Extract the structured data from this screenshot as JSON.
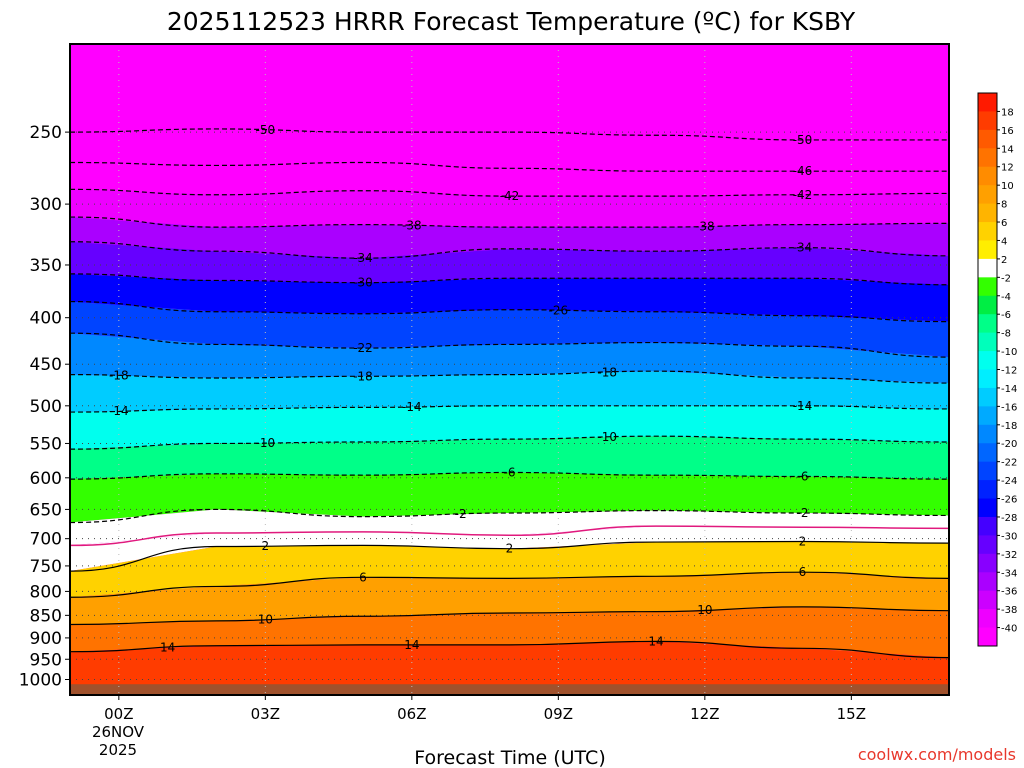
{
  "chart_data": {
    "type": "heatmap",
    "title": "2025112523 HRRR Forecast Temperature (ºC) for KSBY",
    "xlabel": "Forecast Time (UTC)",
    "ylabel": "",
    "credit": "coolwx.com/models",
    "y_axis": {
      "scale": "log-pressure",
      "inverted": true,
      "range_hpa": [
        1040,
        200
      ],
      "tick_values": [
        250,
        300,
        350,
        400,
        450,
        500,
        550,
        600,
        650,
        700,
        750,
        800,
        850,
        900,
        950,
        1000
      ],
      "tick_labels": [
        "250",
        "300",
        "350",
        "400",
        "450",
        "500",
        "550",
        "600",
        "650",
        "700",
        "750",
        "800",
        "850",
        "900",
        "950",
        "1000"
      ]
    },
    "x_axis": {
      "range_hours": [
        -1,
        17
      ],
      "tick_hours": [
        0,
        3,
        6,
        9,
        12,
        15
      ],
      "tick_labels": [
        "00Z",
        "03Z",
        "06Z",
        "09Z",
        "12Z",
        "15Z"
      ],
      "date_label": [
        "26NOV",
        "2025"
      ]
    },
    "colorbar": {
      "tick_labels": [
        "18",
        "16",
        "14",
        "12",
        "10",
        "8",
        "6",
        "4",
        "2",
        "-2",
        "-4",
        "-6",
        "-8",
        "-10",
        "-12",
        "-14",
        "-16",
        "-18",
        "-20",
        "-22",
        "-24",
        "-26",
        "-28",
        "-30",
        "-32",
        "-34",
        "-36",
        "-38",
        "-40"
      ],
      "colors": [
        "#ff1a00",
        "#ff3c00",
        "#ff5a00",
        "#ff7300",
        "#ff8c00",
        "#ffa000",
        "#ffb400",
        "#ffd200",
        "#ffee00",
        "#ffffff",
        "#33ff00",
        "#00ee44",
        "#00ff88",
        "#00ffbb",
        "#00ffee",
        "#00eeff",
        "#00ccff",
        "#00aaff",
        "#0088ff",
        "#0066ff",
        "#0044ff",
        "#0022ff",
        "#0000ff",
        "#4400ff",
        "#6600ff",
        "#8800ff",
        "#aa00ff",
        "#cc00ff",
        "#ee00ff",
        "#ff00ff"
      ]
    },
    "isotherms": [
      {
        "temp": -50,
        "label": "-50",
        "style": "dashed",
        "p": [
          250,
          248,
          250,
          250,
          252,
          255,
          255
        ],
        "label_hours": [
          3,
          14
        ]
      },
      {
        "temp": -46,
        "label": "-46",
        "style": "dashed",
        "p": [
          270,
          272,
          270,
          274,
          276,
          276,
          276
        ],
        "label_hours": [
          14
        ]
      },
      {
        "temp": -42,
        "label": "-42",
        "style": "dashed",
        "p": [
          289,
          293,
          290,
          294,
          294,
          293,
          292
        ],
        "label_hours": [
          8,
          14
        ]
      },
      {
        "temp": -38,
        "label": "-38",
        "style": "dashed",
        "p": [
          310,
          318,
          316,
          318,
          318,
          316,
          315
        ],
        "label_hours": [
          6,
          12
        ]
      },
      {
        "temp": -34,
        "label": "-34",
        "style": "dashed",
        "p": [
          330,
          338,
          344,
          336,
          338,
          335,
          342
        ],
        "label_hours": [
          5,
          14
        ]
      },
      {
        "temp": -30,
        "label": "-30",
        "style": "dashed",
        "p": [
          358,
          364,
          366,
          362,
          362,
          362,
          368
        ],
        "label_hours": [
          5
        ]
      },
      {
        "temp": -26,
        "label": "-26",
        "style": "dashed",
        "p": [
          384,
          394,
          396,
          392,
          394,
          398,
          404
        ],
        "label_hours": [
          9
        ]
      },
      {
        "temp": -22,
        "label": "-22",
        "style": "dashed",
        "p": [
          416,
          428,
          432,
          428,
          426,
          430,
          442
        ],
        "label_hours": [
          5
        ]
      },
      {
        "temp": -18,
        "label": "-18",
        "style": "dashed",
        "p": [
          462,
          466,
          464,
          462,
          458,
          466,
          472
        ],
        "label_hours": [
          0,
          5,
          10
        ]
      },
      {
        "temp": -14,
        "label": "-14",
        "style": "dashed",
        "p": [
          508,
          504,
          502,
          500,
          500,
          500,
          504
        ],
        "label_hours": [
          0,
          6,
          14
        ]
      },
      {
        "temp": -10,
        "label": "-10",
        "style": "dashed",
        "p": [
          558,
          550,
          548,
          544,
          540,
          544,
          548
        ],
        "label_hours": [
          3,
          10
        ]
      },
      {
        "temp": -6,
        "label": "-6",
        "style": "dashed",
        "p": [
          602,
          594,
          596,
          592,
          596,
          598,
          602
        ],
        "label_hours": [
          8,
          14
        ]
      },
      {
        "temp": -2,
        "label": "-2",
        "style": "dashed",
        "p": [
          672,
          650,
          662,
          656,
          652,
          656,
          660
        ],
        "label_hours": [
          7,
          14
        ]
      },
      {
        "temp": 0,
        "label": "",
        "style": "freezing",
        "p": [
          712,
          690,
          688,
          694,
          678,
          680,
          682
        ],
        "label_hours": []
      },
      {
        "temp": 2,
        "label": "2",
        "style": "solid",
        "p": [
          760,
          714,
          712,
          718,
          706,
          705,
          708
        ],
        "label_hours": [
          3,
          8,
          14
        ]
      },
      {
        "temp": 6,
        "label": "6",
        "style": "solid",
        "p": [
          812,
          790,
          772,
          774,
          770,
          762,
          774
        ],
        "label_hours": [
          5,
          14
        ]
      },
      {
        "temp": 10,
        "label": "10",
        "style": "solid",
        "p": [
          870,
          862,
          852,
          845,
          842,
          832,
          840
        ],
        "label_hours": [
          3,
          12
        ]
      },
      {
        "temp": 14,
        "label": "14",
        "style": "solid",
        "p": [
          932,
          918,
          916,
          916,
          908,
          924,
          946
        ],
        "label_hours": [
          1,
          6,
          11
        ]
      }
    ],
    "isotherm_hours": [
      -1,
      2,
      5,
      8,
      11,
      14,
      17
    ]
  }
}
